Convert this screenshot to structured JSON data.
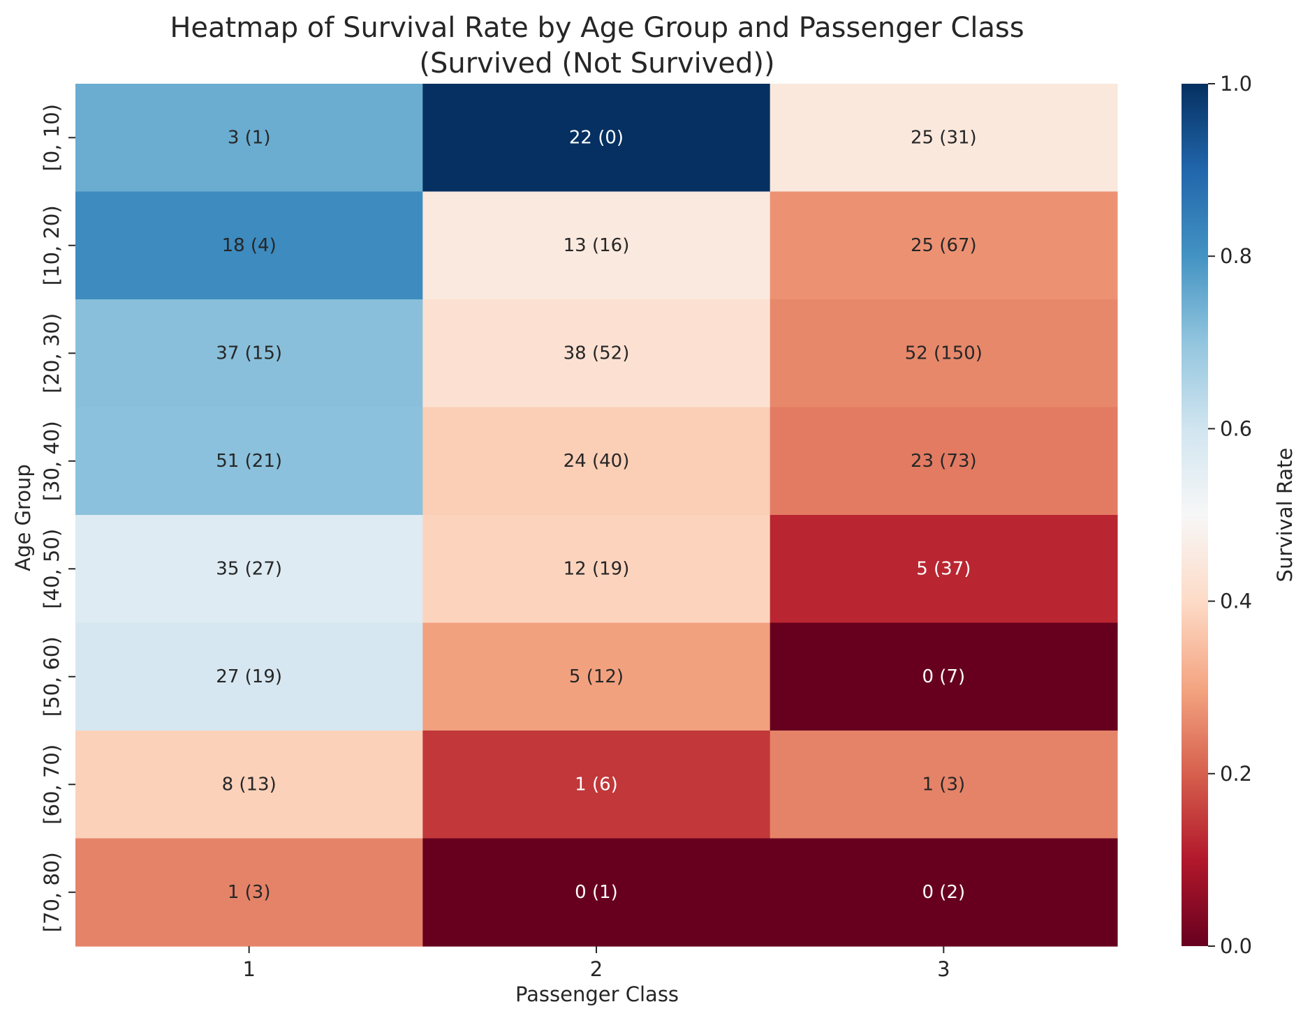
{
  "chart_data": {
    "type": "heatmap",
    "title": "Heatmap of Survival Rate by Age Group and Passenger Class",
    "subtitle": "(Survived (Not Survived))",
    "xlabel": "Passenger Class",
    "ylabel": "Age Group",
    "x_categories": [
      "1",
      "2",
      "3"
    ],
    "y_categories": [
      "[0, 10)",
      "[10, 20)",
      "[20, 30)",
      "[30, 40)",
      "[40, 50)",
      "[50, 60)",
      "[60, 70)",
      "[70, 80)"
    ],
    "survived": [
      [
        3,
        22,
        25
      ],
      [
        18,
        13,
        25
      ],
      [
        37,
        38,
        52
      ],
      [
        51,
        24,
        23
      ],
      [
        35,
        12,
        5
      ],
      [
        27,
        5,
        0
      ],
      [
        8,
        1,
        1
      ],
      [
        1,
        0,
        0
      ]
    ],
    "not_survived": [
      [
        1,
        0,
        31
      ],
      [
        4,
        16,
        67
      ],
      [
        15,
        52,
        150
      ],
      [
        21,
        40,
        73
      ],
      [
        27,
        19,
        37
      ],
      [
        19,
        12,
        7
      ],
      [
        13,
        6,
        3
      ],
      [
        3,
        1,
        2
      ]
    ],
    "cell_labels": [
      [
        "3 (1)",
        "22 (0)",
        "25 (31)"
      ],
      [
        "18 (4)",
        "13 (16)",
        "25 (67)"
      ],
      [
        "37 (15)",
        "38 (52)",
        "52 (150)"
      ],
      [
        "51 (21)",
        "24 (40)",
        "23 (73)"
      ],
      [
        "35 (27)",
        "12 (19)",
        "5 (37)"
      ],
      [
        "27 (19)",
        "5 (12)",
        "0 (7)"
      ],
      [
        "8 (13)",
        "1 (6)",
        "1 (3)"
      ],
      [
        "1 (3)",
        "0 (1)",
        "0 (2)"
      ]
    ],
    "colorbar": {
      "label": "Survival Rate",
      "range": [
        0.0,
        1.0
      ],
      "ticks": [
        "0.0",
        "0.2",
        "0.4",
        "0.6",
        "0.8",
        "1.0"
      ],
      "colormap": "RdBu"
    }
  }
}
